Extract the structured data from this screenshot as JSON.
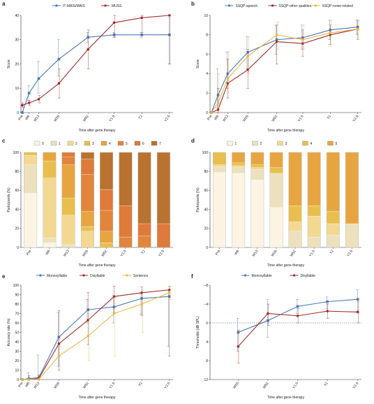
{
  "colors": {
    "blue": "#4a78b8",
    "red": "#a32b2b",
    "yellow": "#e9b84a",
    "stack_levels": [
      "#fbf4e2",
      "#ece0bd",
      "#f2d891",
      "#e8bf4f",
      "#e7a541",
      "#e0853b",
      "#de7a3a",
      "#b9722f"
    ]
  },
  "chart_data": [
    {
      "panel": "a",
      "type": "line",
      "categories": [
        "Pre",
        "W6",
        "W13",
        "W26",
        "W52",
        "Y1.5",
        "Y2",
        "Y2.5"
      ],
      "x": [
        0,
        6,
        13,
        26,
        52,
        78,
        104,
        130
      ],
      "ylabel": "Score",
      "xlabel": "Time after gene therapy",
      "ylim": [
        0,
        40
      ],
      "yticks": [
        0,
        10,
        20,
        30,
        40
      ],
      "legend": "top",
      "series": [
        {
          "name": "IT-MAIS/MAIS",
          "color": "blue",
          "values": [
            0,
            8,
            14,
            22,
            31,
            32,
            32,
            32
          ],
          "err_low": [
            0,
            5,
            8,
            15,
            29,
            31,
            31,
            20
          ],
          "err_high": [
            0,
            11,
            21,
            30,
            33,
            33,
            33,
            39
          ]
        },
        {
          "name": "MUSS",
          "color": "red",
          "values": [
            3,
            4,
            5.5,
            12,
            26,
            37,
            39,
            40
          ],
          "err_low": [
            2,
            3,
            4,
            6,
            18,
            31,
            33,
            20
          ],
          "err_high": [
            4,
            5,
            7,
            18,
            34,
            40,
            40,
            40
          ]
        }
      ]
    },
    {
      "panel": "b",
      "type": "line",
      "categories": [
        "Pre",
        "W6",
        "W13",
        "W26",
        "W52",
        "Y1.5",
        "Y2",
        "Y2.5"
      ],
      "x": [
        0,
        6,
        13,
        26,
        52,
        78,
        104,
        130
      ],
      "ylabel": "Score",
      "xlabel": "Time after gene therapy",
      "ylim": [
        0,
        10
      ],
      "yticks": [
        0,
        2,
        4,
        6,
        8,
        10
      ],
      "legend": "top",
      "series": [
        {
          "name": "SSQP-speech",
          "color": "blue",
          "values": [
            0,
            1.8,
            4,
            6.2,
            7.5,
            7.7,
            8.5,
            8.8
          ],
          "err_low": [
            0,
            0.5,
            2.5,
            4.5,
            6,
            6.5,
            7.5,
            8
          ],
          "err_high": [
            0,
            4.5,
            6.2,
            7.8,
            9,
            9,
            9.5,
            9.5
          ]
        },
        {
          "name": "SSQP-other qualities",
          "color": "red",
          "values": [
            0,
            0.3,
            3,
            4.4,
            7.3,
            7.1,
            8,
            8.6
          ],
          "err_low": [
            0,
            0,
            1.5,
            2.5,
            5,
            5.8,
            7,
            7.5
          ],
          "err_high": [
            0,
            2.5,
            5.5,
            6.5,
            9,
            8.5,
            9,
            9.5
          ]
        },
        {
          "name": "SSQP-noise-related",
          "color": "yellow",
          "values": [
            0,
            1,
            3.5,
            5.8,
            8,
            7.5,
            8.2,
            8.6
          ],
          "err_low": [
            0,
            0,
            2,
            4,
            6.5,
            6.5,
            6.8,
            7.5
          ],
          "err_high": [
            0,
            4,
            6.3,
            7.8,
            9.3,
            9,
            9.5,
            9.5
          ]
        }
      ]
    },
    {
      "panel": "c",
      "type": "bar",
      "stacked": true,
      "categories": [
        "Pre",
        "W6",
        "W13",
        "W26",
        "W52",
        "Y1.5",
        "Y2",
        "Y2.5"
      ],
      "ylabel": "Participants (%)",
      "xlabel": "Time after gene therapy",
      "ylim": [
        0,
        100
      ],
      "yticks": [
        0,
        20,
        40,
        60,
        80,
        100
      ],
      "legend_labels": [
        "0",
        "1",
        "2",
        "3",
        "4",
        "5",
        "6",
        "7"
      ],
      "stacks": [
        [
          57,
          30,
          10,
          3,
          0,
          0,
          0,
          0
        ],
        [
          5,
          5,
          63,
          18,
          9,
          0,
          0,
          0
        ],
        [
          0,
          3,
          31,
          18,
          35,
          8,
          5,
          0
        ],
        [
          0,
          0,
          17,
          5,
          16,
          39,
          16,
          7
        ],
        [
          0,
          0,
          0,
          5,
          12,
          22,
          22,
          39
        ],
        [
          0,
          0,
          0,
          0,
          0,
          11,
          33,
          56
        ],
        [
          0,
          0,
          0,
          0,
          0,
          12,
          13,
          75
        ],
        [
          0,
          0,
          0,
          0,
          0,
          0,
          25,
          75
        ]
      ]
    },
    {
      "panel": "d",
      "type": "bar",
      "stacked": true,
      "categories": [
        "Pre",
        "W6",
        "W13",
        "W26",
        "W52",
        "Y1.5",
        "Y2",
        "Y2.5"
      ],
      "ylabel": "Participants (%)",
      "xlabel": "Time after gene therapy",
      "ylim": [
        0,
        100
      ],
      "yticks": [
        0,
        20,
        40,
        60,
        80,
        100
      ],
      "legend_labels": [
        "1",
        "2",
        "3",
        "4",
        "5"
      ],
      "stacks": [
        [
          79,
          6,
          2,
          13,
          0
        ],
        [
          78,
          6,
          2,
          3,
          11
        ],
        [
          71,
          11,
          2,
          3,
          13
        ],
        [
          42,
          36,
          0,
          6,
          16
        ],
        [
          0,
          17,
          10,
          17,
          56
        ],
        [
          0,
          11,
          22,
          11,
          56
        ],
        [
          0,
          13,
          12,
          13,
          62
        ],
        [
          0,
          25,
          0,
          0,
          75
        ]
      ]
    },
    {
      "panel": "e",
      "type": "line",
      "categories": [
        "Pre",
        "W6",
        "W13",
        "W26",
        "W52",
        "Y1.5",
        "Y2",
        "Y2.5"
      ],
      "x": [
        0,
        6,
        13,
        26,
        52,
        78,
        104,
        130
      ],
      "ylabel": "Accuracy rate (%)",
      "xlabel": "Time after gene therapy",
      "ylim": [
        0,
        100
      ],
      "yticks": [
        0,
        10,
        20,
        30,
        40,
        50,
        60,
        70,
        80,
        90,
        100
      ],
      "legend": "top",
      "series": [
        {
          "name": "Monosyllable",
          "color": "blue",
          "values": [
            0,
            1,
            2,
            45,
            74,
            77,
            86,
            88
          ],
          "err_low": [
            0,
            0,
            0,
            14,
            60,
            60,
            69,
            35
          ],
          "err_high": [
            0,
            7,
            26,
            71,
            85,
            89,
            91,
            94
          ]
        },
        {
          "name": "Disyllable",
          "color": "red",
          "values": [
            0,
            0,
            1,
            38,
            63,
            88,
            92,
            95
          ],
          "err_low": [
            0,
            0,
            0,
            10,
            37,
            71,
            68,
            25
          ],
          "err_high": [
            0,
            4,
            5,
            73,
            92,
            99,
            98,
            99
          ]
        },
        {
          "name": "Sentence",
          "color": "yellow",
          "values": [
            0,
            0,
            0,
            25,
            46,
            70,
            80,
            92
          ],
          "err_low": [
            0,
            0,
            0,
            15,
            20,
            25,
            50,
            85
          ],
          "err_high": [
            0,
            0,
            2,
            35,
            70,
            87,
            95,
            99
          ]
        }
      ]
    },
    {
      "panel": "f",
      "type": "line",
      "categories": [
        "W26",
        "W52",
        "Y1.5",
        "Y2",
        "Y2.5"
      ],
      "x": [
        26,
        52,
        78,
        104,
        130
      ],
      "ylabel": "Thresholds (dB SPL)",
      "xlabel": "Time after gene therapy",
      "ylim": [
        12,
        -8
      ],
      "yticks": [
        -8,
        -4,
        0,
        4,
        8,
        12
      ],
      "yticklabels": [
        "−8",
        "−4",
        "0",
        "4",
        "8",
        "12"
      ],
      "reference_line": 0,
      "legend": "top",
      "series": [
        {
          "name": "Monosyllable",
          "color": "blue",
          "values": [
            2,
            -0.5,
            -3.5,
            -4.5,
            -5
          ],
          "err_low": [
            6,
            3,
            -2,
            -3,
            -2.5
          ],
          "err_high": [
            -1,
            -5,
            -5,
            -5.5,
            -7
          ]
        },
        {
          "name": "Disyllable",
          "color": "red",
          "values": [
            5,
            -2,
            -1.5,
            -2.5,
            -2.3
          ],
          "err_low": [
            8.5,
            0.5,
            0,
            -1,
            0
          ],
          "err_high": [
            1.5,
            -4,
            -3,
            -4,
            -4.5
          ]
        }
      ]
    }
  ]
}
